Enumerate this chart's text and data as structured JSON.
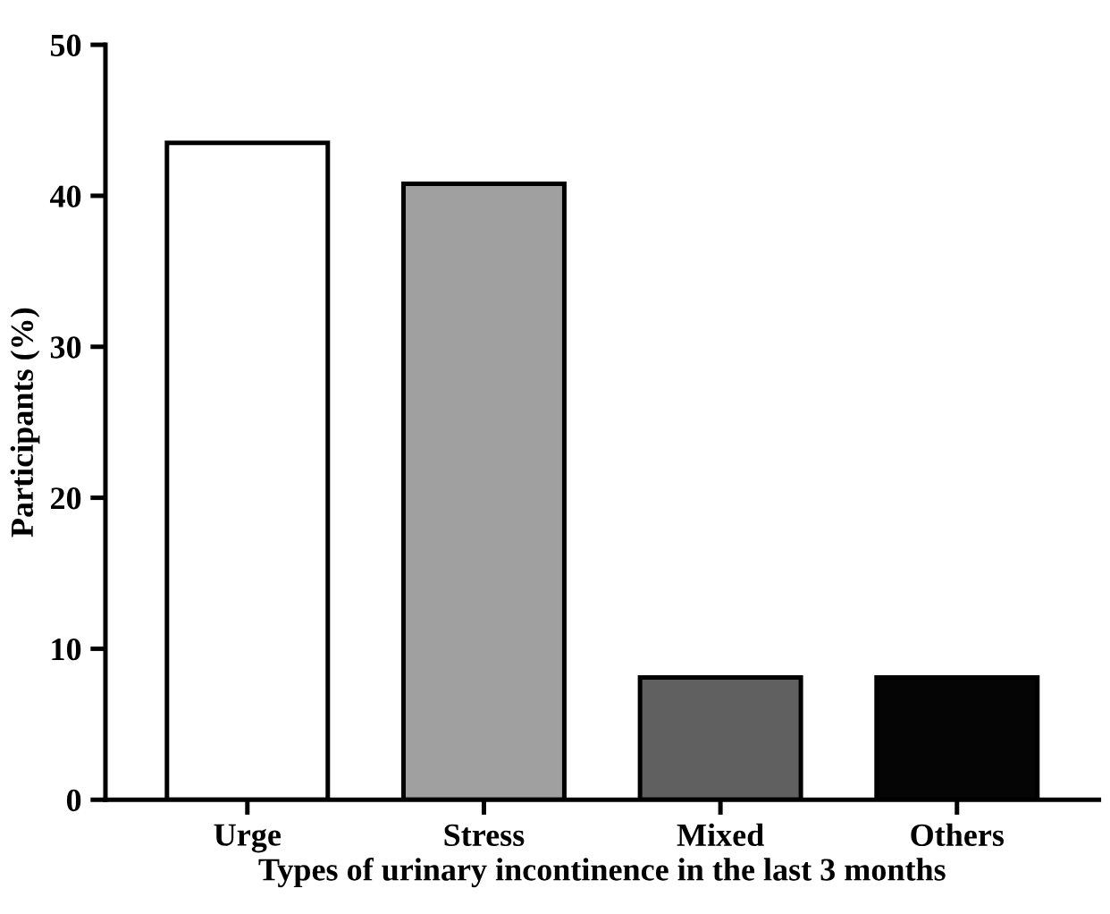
{
  "chart_data": {
    "type": "bar",
    "xlabel": "Types of urinary incontinence in the last 3 months",
    "ylabel": "Participants (%)",
    "categories": [
      "Urge",
      "Stress",
      "Mixed",
      "Others"
    ],
    "values": [
      43.5,
      40.8,
      8.1,
      8.1
    ],
    "colors": [
      "#ffffff",
      "#a0a0a0",
      "#606060",
      "#050505"
    ],
    "ylim": [
      0,
      50
    ],
    "yticks": [
      0,
      10,
      20,
      30,
      40,
      50
    ]
  }
}
